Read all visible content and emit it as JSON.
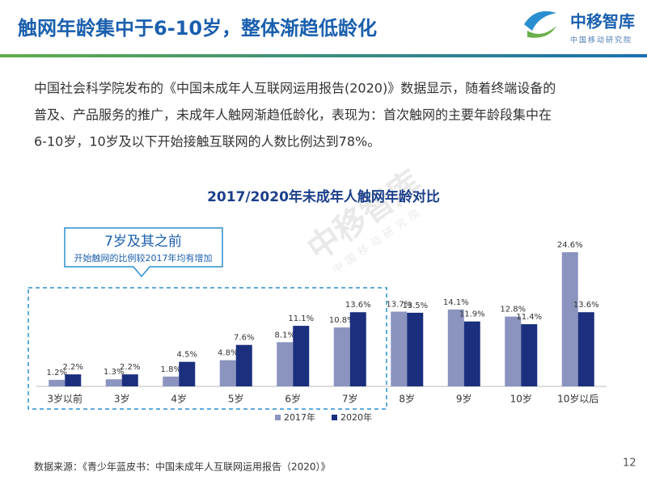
{
  "header": {
    "title": "触网年龄集中于6-10岁，整体渐趋低龄化"
  },
  "logo": {
    "name": "中移智库",
    "org": "中国移动研究院"
  },
  "paragraph": [
    "中国社会科学院发布的《中国未成年人互联网运用报告(2020)》数据显示，随着终端设备的",
    "普及、产品服务的推广，未成年人触网渐趋低龄化，表现为：首次触网的主要年龄段集中在",
    "6-10岁，10岁及以下开始接触互联网的人数比例达到78%。"
  ],
  "callout": {
    "title": "7岁及其之前",
    "text": "开始触网的比例较2017年均有增加"
  },
  "chart_data": {
    "type": "bar",
    "title": "2017/2020年未成年人触网年龄对比",
    "categories": [
      "3岁以前",
      "3岁",
      "4岁",
      "5岁",
      "6岁",
      "7岁",
      "8岁",
      "9岁",
      "10岁",
      "10岁以后"
    ],
    "series": [
      {
        "name": "2017年",
        "color": "#8b93bf",
        "values": [
          1.2,
          1.3,
          1.8,
          4.8,
          8.1,
          10.8,
          13.7,
          14.1,
          12.8,
          24.6
        ],
        "value_labels": [
          "1.2%",
          "1.3%",
          "1.8%",
          "4.8%",
          "8.1%",
          "10.8%",
          "13.7%",
          "14.1%",
          "12.8%",
          "24.6%"
        ]
      },
      {
        "name": "2020年",
        "color": "#1b2f7e",
        "values": [
          2.2,
          2.2,
          4.5,
          7.6,
          11.1,
          13.6,
          13.5,
          11.9,
          11.4,
          13.6
        ],
        "value_labels": [
          "2.2%",
          "2.2%",
          "4.5%",
          "7.6%",
          "11.1%",
          "13.6%",
          "13.5%",
          "11.9%",
          "11.4%",
          "13.6%"
        ]
      }
    ],
    "legend": "bottom"
  },
  "footer": {
    "source": "数据来源：《青少年蓝皮书：中国未成年人互联网运用报告（2020）》",
    "page": "12"
  }
}
